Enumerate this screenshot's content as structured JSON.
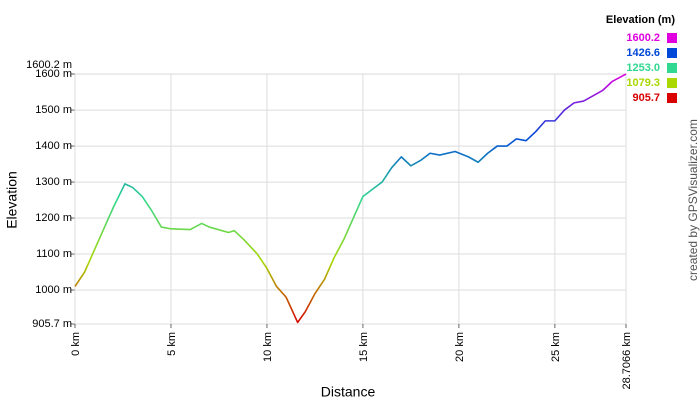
{
  "chart_data": {
    "type": "line",
    "xlabel": "Distance",
    "ylabel": "Elevation",
    "credit": "created by GPSVisualizer.com",
    "legend": {
      "title": "Elevation (m)",
      "items": [
        {
          "value": 1600.2,
          "label": "1600.2",
          "color": "#e000e0"
        },
        {
          "value": 1426.6,
          "label": "1426.6",
          "color": "#0048d8"
        },
        {
          "value": 1253.0,
          "label": "1253.0",
          "color": "#30d890"
        },
        {
          "value": 1079.3,
          "label": "1079.3",
          "color": "#a8d800"
        },
        {
          "value": 905.7,
          "label": "905.7",
          "color": "#d80000"
        }
      ]
    },
    "x": [
      0,
      0.5,
      1,
      1.5,
      2,
      2.6,
      3,
      3.5,
      4,
      4.5,
      5,
      6,
      6.6,
      7,
      8,
      8.3,
      8.8,
      9.5,
      10,
      10.5,
      11,
      11.6,
      12,
      12.5,
      13,
      13.5,
      14,
      14.5,
      15,
      15.5,
      16,
      16.5,
      17,
      17.5,
      18,
      18.5,
      19,
      19.8,
      20.5,
      21,
      21.5,
      22,
      22.5,
      23,
      23.5,
      24,
      24.5,
      25,
      25.5,
      26,
      26.5,
      27,
      27.5,
      28,
      28.7066
    ],
    "values": [
      1010,
      1050,
      1110,
      1170,
      1230,
      1295,
      1285,
      1260,
      1220,
      1175,
      1170,
      1168,
      1185,
      1175,
      1160,
      1165,
      1140,
      1100,
      1060,
      1010,
      980,
      910,
      940,
      990,
      1030,
      1090,
      1140,
      1200,
      1260,
      1280,
      1300,
      1340,
      1370,
      1345,
      1360,
      1380,
      1375,
      1385,
      1370,
      1355,
      1380,
      1400,
      1400,
      1420,
      1415,
      1440,
      1470,
      1470,
      1500,
      1520,
      1525,
      1540,
      1555,
      1580,
      1600
    ],
    "xlim": [
      0,
      28.7066
    ],
    "ylim": [
      905.7,
      1600.2
    ],
    "xticks": [
      {
        "value": 0,
        "label": "0 km"
      },
      {
        "value": 5,
        "label": "5 km"
      },
      {
        "value": 10,
        "label": "10 km"
      },
      {
        "value": 15,
        "label": "15 km"
      },
      {
        "value": 20,
        "label": "20 km"
      },
      {
        "value": 25,
        "label": "25 km"
      },
      {
        "value": 28.7066,
        "label": "28.7066 km"
      }
    ],
    "yticks": [
      {
        "value": 905.7,
        "label": "905.7 m"
      },
      {
        "value": 1000,
        "label": "1000 m"
      },
      {
        "value": 1100,
        "label": "1100 m"
      },
      {
        "value": 1200,
        "label": "1200 m"
      },
      {
        "value": 1300,
        "label": "1300 m"
      },
      {
        "value": 1400,
        "label": "1400 m"
      },
      {
        "value": 1500,
        "label": "1500 m"
      },
      {
        "value": 1600,
        "label": "1600 m"
      },
      {
        "value": 1600.2,
        "label": "1600.2 m"
      }
    ],
    "grid": true
  }
}
